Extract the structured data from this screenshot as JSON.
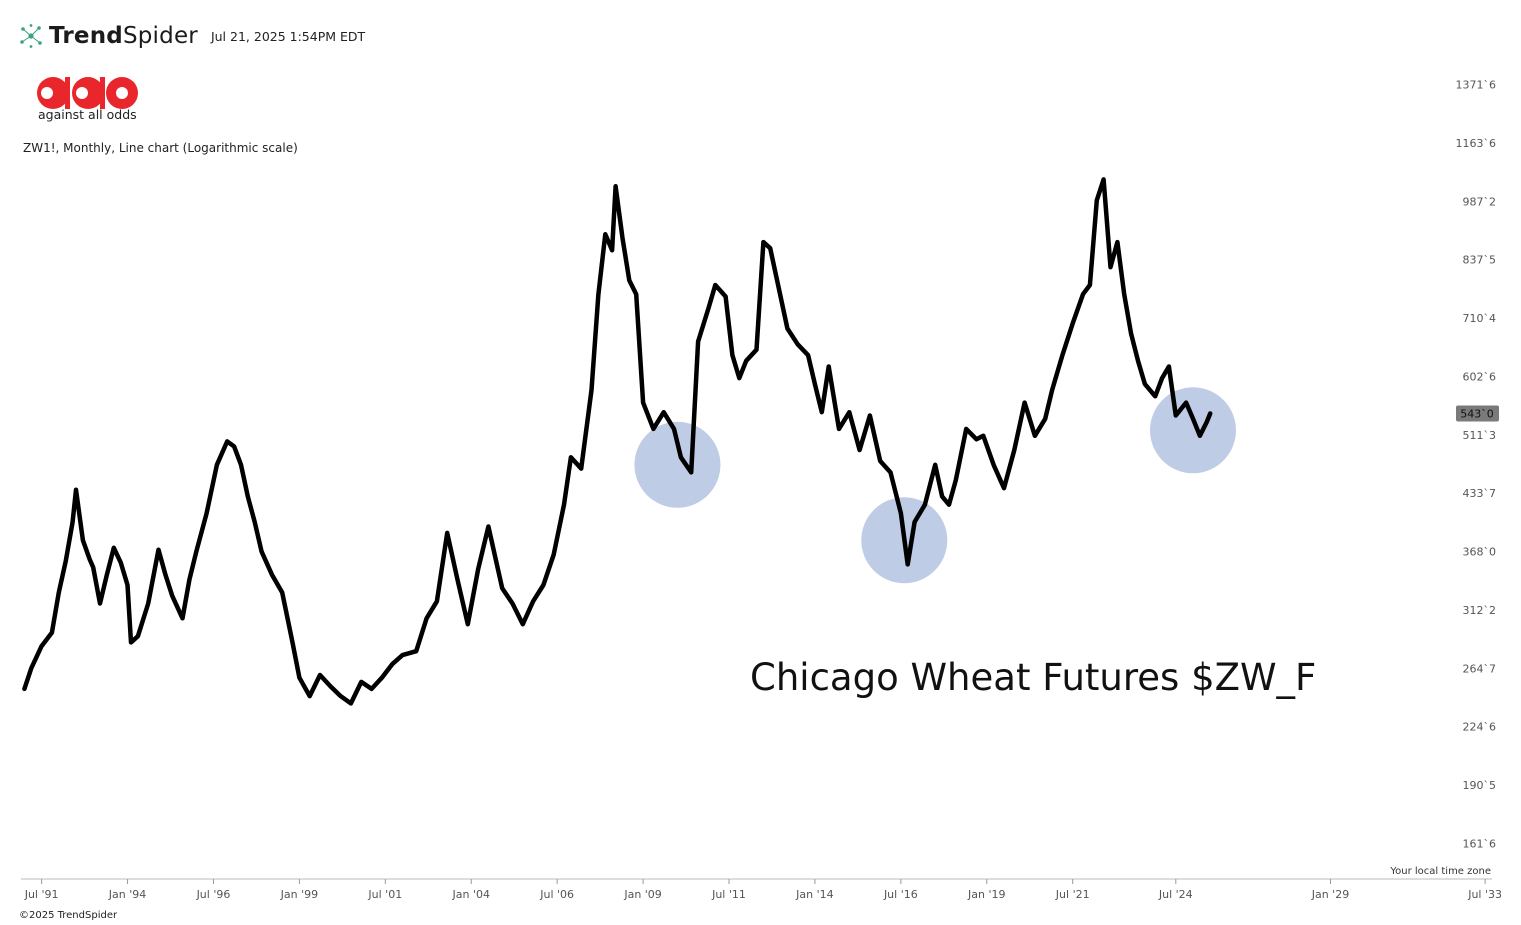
{
  "header": {
    "brand_light": "Trend",
    "brand_regular": "Spider",
    "timestamp": "Jul 21, 2025 1:54PM EDT"
  },
  "aao": {
    "tagline": "against all odds"
  },
  "chart_subtitle": "ZW1!, Monthly, Line chart (Logarithmic scale)",
  "footer": {
    "copyright": "©2025 TrendSpider",
    "timezone": "Your local time zone"
  },
  "colors": {
    "line": "#000000",
    "highlight": "#B4C3E1",
    "price_badge": "#7a7a7a",
    "brand_red": "#E8262C",
    "brand_icon": "#3BA37F"
  },
  "chart_data": {
    "type": "line",
    "title": "Chicago Wheat Futures $ZW_F",
    "scale": "log",
    "ylim": [
      148,
      1470
    ],
    "xlim": [
      1990.9,
      2033.7
    ],
    "y_ticks": [
      {
        "value": 161.75,
        "label": "161`6"
      },
      {
        "value": 190.625,
        "label": "190`5"
      },
      {
        "value": 224.75,
        "label": "224`6"
      },
      {
        "value": 264.875,
        "label": "264`7"
      },
      {
        "value": 312.25,
        "label": "312`2"
      },
      {
        "value": 368.0,
        "label": "368`0"
      },
      {
        "value": 433.875,
        "label": "433`7"
      },
      {
        "value": 511.375,
        "label": "511`3"
      },
      {
        "value": 602.75,
        "label": "602`6"
      },
      {
        "value": 710.5,
        "label": "710`4"
      },
      {
        "value": 837.625,
        "label": "837`5"
      },
      {
        "value": 987.25,
        "label": "987`2"
      },
      {
        "value": 1163.75,
        "label": "1163`6"
      },
      {
        "value": 1371.75,
        "label": "1371`6"
      }
    ],
    "x_ticks": [
      {
        "value": 1991.5,
        "label": "Jul '91"
      },
      {
        "value": 1994.0,
        "label": "Jan '94"
      },
      {
        "value": 1996.5,
        "label": "Jul '96"
      },
      {
        "value": 1999.0,
        "label": "Jan '99"
      },
      {
        "value": 2001.5,
        "label": "Jul '01"
      },
      {
        "value": 2004.0,
        "label": "Jan '04"
      },
      {
        "value": 2006.5,
        "label": "Jul '06"
      },
      {
        "value": 2009.0,
        "label": "Jan '09"
      },
      {
        "value": 2011.5,
        "label": "Jul '11"
      },
      {
        "value": 2014.0,
        "label": "Jan '14"
      },
      {
        "value": 2016.5,
        "label": "Jul '16"
      },
      {
        "value": 2019.0,
        "label": "Jan '19"
      },
      {
        "value": 2021.5,
        "label": "Jul '21"
      },
      {
        "value": 2024.5,
        "label": "Jul '24"
      },
      {
        "value": 2029.0,
        "label": "Jan '29"
      },
      {
        "value": 2033.5,
        "label": "Jul '33"
      }
    ],
    "current_price": {
      "value": 543.0,
      "label": "543`0"
    },
    "highlights": [
      {
        "x": 2010.0,
        "y": 470
      },
      {
        "x": 2016.6,
        "y": 380
      },
      {
        "x": 2025.0,
        "y": 518
      }
    ],
    "series": [
      {
        "points": [
          [
            1991.0,
            250
          ],
          [
            1991.2,
            265
          ],
          [
            1991.5,
            282
          ],
          [
            1991.8,
            293
          ],
          [
            1992.0,
            328
          ],
          [
            1992.2,
            358
          ],
          [
            1992.4,
            400
          ],
          [
            1992.5,
            438
          ],
          [
            1992.7,
            380
          ],
          [
            1992.9,
            360
          ],
          [
            1993.0,
            352
          ],
          [
            1993.2,
            318
          ],
          [
            1993.4,
            345
          ],
          [
            1993.6,
            372
          ],
          [
            1993.8,
            357
          ],
          [
            1994.0,
            335
          ],
          [
            1994.1,
            285
          ],
          [
            1994.3,
            290
          ],
          [
            1994.6,
            318
          ],
          [
            1994.9,
            370
          ],
          [
            1995.1,
            345
          ],
          [
            1995.3,
            325
          ],
          [
            1995.6,
            305
          ],
          [
            1995.8,
            340
          ],
          [
            1996.0,
            368
          ],
          [
            1996.3,
            410
          ],
          [
            1996.6,
            470
          ],
          [
            1996.9,
            502
          ],
          [
            1997.1,
            495
          ],
          [
            1997.3,
            470
          ],
          [
            1997.5,
            430
          ],
          [
            1997.7,
            400
          ],
          [
            1997.9,
            368
          ],
          [
            1998.2,
            345
          ],
          [
            1998.5,
            328
          ],
          [
            1998.8,
            285
          ],
          [
            1999.0,
            258
          ],
          [
            1999.3,
            245
          ],
          [
            1999.6,
            260
          ],
          [
            1999.9,
            252
          ],
          [
            2000.2,
            245
          ],
          [
            2000.5,
            240
          ],
          [
            2000.8,
            255
          ],
          [
            2001.1,
            250
          ],
          [
            2001.4,
            258
          ],
          [
            2001.7,
            268
          ],
          [
            2002.0,
            275
          ],
          [
            2002.4,
            278
          ],
          [
            2002.7,
            305
          ],
          [
            2003.0,
            320
          ],
          [
            2003.3,
            388
          ],
          [
            2003.6,
            340
          ],
          [
            2003.9,
            300
          ],
          [
            2004.2,
            350
          ],
          [
            2004.5,
            395
          ],
          [
            2004.9,
            332
          ],
          [
            2005.2,
            318
          ],
          [
            2005.5,
            300
          ],
          [
            2005.8,
            320
          ],
          [
            2006.1,
            335
          ],
          [
            2006.4,
            365
          ],
          [
            2006.7,
            420
          ],
          [
            2006.9,
            480
          ],
          [
            2007.2,
            465
          ],
          [
            2007.5,
            580
          ],
          [
            2007.7,
            760
          ],
          [
            2007.9,
            900
          ],
          [
            2008.1,
            860
          ],
          [
            2008.2,
            1030
          ],
          [
            2008.4,
            890
          ],
          [
            2008.6,
            790
          ],
          [
            2008.8,
            760
          ],
          [
            2009.0,
            560
          ],
          [
            2009.3,
            520
          ],
          [
            2009.6,
            545
          ],
          [
            2009.9,
            520
          ],
          [
            2010.1,
            480
          ],
          [
            2010.4,
            460
          ],
          [
            2010.6,
            665
          ],
          [
            2010.9,
            730
          ],
          [
            2011.1,
            780
          ],
          [
            2011.4,
            755
          ],
          [
            2011.6,
            640
          ],
          [
            2011.8,
            600
          ],
          [
            2012.0,
            630
          ],
          [
            2012.3,
            650
          ],
          [
            2012.5,
            880
          ],
          [
            2012.7,
            865
          ],
          [
            2012.9,
            790
          ],
          [
            2013.2,
            690
          ],
          [
            2013.5,
            660
          ],
          [
            2013.8,
            640
          ],
          [
            2014.0,
            590
          ],
          [
            2014.2,
            545
          ],
          [
            2014.4,
            620
          ],
          [
            2014.7,
            520
          ],
          [
            2015.0,
            545
          ],
          [
            2015.3,
            490
          ],
          [
            2015.6,
            540
          ],
          [
            2015.9,
            475
          ],
          [
            2016.2,
            460
          ],
          [
            2016.5,
            410
          ],
          [
            2016.7,
            355
          ],
          [
            2016.9,
            400
          ],
          [
            2017.2,
            420
          ],
          [
            2017.5,
            470
          ],
          [
            2017.7,
            430
          ],
          [
            2017.9,
            420
          ],
          [
            2018.1,
            450
          ],
          [
            2018.4,
            520
          ],
          [
            2018.7,
            505
          ],
          [
            2018.9,
            510
          ],
          [
            2019.2,
            470
          ],
          [
            2019.5,
            440
          ],
          [
            2019.8,
            490
          ],
          [
            2020.1,
            560
          ],
          [
            2020.4,
            510
          ],
          [
            2020.7,
            535
          ],
          [
            2020.9,
            580
          ],
          [
            2021.2,
            640
          ],
          [
            2021.5,
            700
          ],
          [
            2021.8,
            760
          ],
          [
            2022.0,
            780
          ],
          [
            2022.2,
            990
          ],
          [
            2022.4,
            1050
          ],
          [
            2022.6,
            820
          ],
          [
            2022.8,
            880
          ],
          [
            2023.0,
            760
          ],
          [
            2023.2,
            680
          ],
          [
            2023.4,
            630
          ],
          [
            2023.6,
            590
          ],
          [
            2023.9,
            570
          ],
          [
            2024.1,
            600
          ],
          [
            2024.3,
            620
          ],
          [
            2024.5,
            540
          ],
          [
            2024.8,
            560
          ],
          [
            2025.0,
            535
          ],
          [
            2025.2,
            510
          ],
          [
            2025.4,
            530
          ],
          [
            2025.5,
            543
          ]
        ]
      }
    ]
  }
}
